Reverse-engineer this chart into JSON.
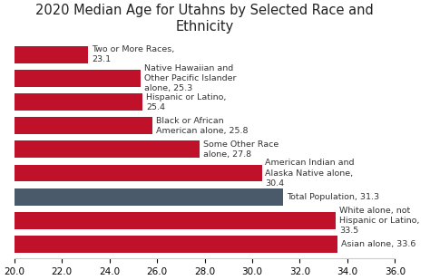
{
  "title": "2020 Median Age for Utahns by Selected Race and\nEthnicity",
  "categories": [
    "Two or More Races,\n23.1",
    "Native Hawaiian and\nOther Pacific Islander\nalone, 25.3",
    "Hispanic or Latino,\n25.4",
    "Black or African\nAmerican alone, 25.8",
    "Some Other Race\nalone, 27.8",
    "American Indian and\nAlaska Native alone,\n30.4",
    "Total Population, 31.3",
    "White alone, not\nHispanic or Latino,\n33.5",
    "Asian alone, 33.6"
  ],
  "values": [
    23.1,
    25.3,
    25.4,
    25.8,
    27.8,
    30.4,
    31.3,
    33.5,
    33.6
  ],
  "bar_colors": [
    "#c0112b",
    "#c0112b",
    "#c0112b",
    "#c0112b",
    "#c0112b",
    "#c0112b",
    "#4a5a6a",
    "#c0112b",
    "#c0112b"
  ],
  "xlim": [
    20.0,
    36.0
  ],
  "xticks": [
    20.0,
    22.0,
    24.0,
    26.0,
    28.0,
    30.0,
    32.0,
    34.0,
    36.0
  ],
  "bar_height": 0.72,
  "background_color": "#ffffff",
  "title_fontsize": 10.5,
  "label_fontsize": 6.8
}
